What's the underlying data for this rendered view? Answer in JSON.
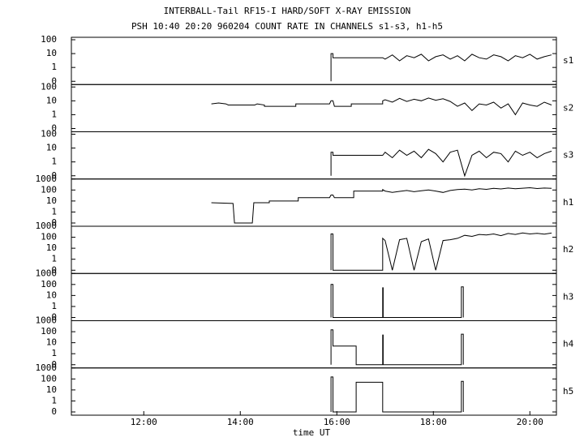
{
  "chart_data": [
    {
      "type": "line",
      "title": "INTERBALL-Tail RF15-I HARD/SOFT X-RAY EMISSION",
      "subtitle": "PSH 10:40 20:20 960204  COUNT RATE IN CHANNELS s1-s3, h1-h5",
      "name": "s1",
      "color": "#000000",
      "yscale": "log-zero",
      "xlim": [
        10.5,
        20.55
      ],
      "ylim": [
        0,
        150
      ],
      "yticks": [
        0,
        1,
        10,
        100
      ],
      "x": [
        15.88,
        15.88,
        15.92,
        15.92,
        16.95,
        16.95,
        17.0,
        17.15,
        17.3,
        17.45,
        17.6,
        17.75,
        17.9,
        18.05,
        18.2,
        18.35,
        18.5,
        18.65,
        18.8,
        18.95,
        19.1,
        19.25,
        19.4,
        19.55,
        19.7,
        19.85,
        20.0,
        20.15,
        20.3,
        20.45
      ],
      "values": [
        0,
        10,
        10,
        5,
        5,
        5,
        4,
        8,
        3,
        7,
        5,
        9,
        3,
        6,
        8,
        4,
        7,
        3,
        9,
        5,
        4,
        8,
        6,
        3,
        7,
        5,
        9,
        4,
        6,
        8
      ]
    },
    {
      "type": "line",
      "name": "s2",
      "color": "#000000",
      "yscale": "log-zero",
      "xlim": [
        10.5,
        20.55
      ],
      "ylim": [
        0,
        150
      ],
      "yticks": [
        0,
        1,
        10,
        100
      ],
      "x": [
        13.4,
        13.55,
        13.7,
        13.75,
        14.3,
        14.35,
        14.5,
        14.5,
        15.15,
        15.15,
        15.85,
        15.88,
        15.92,
        15.95,
        16.3,
        16.3,
        16.95,
        16.95,
        17.0,
        17.15,
        17.3,
        17.45,
        17.6,
        17.75,
        17.9,
        18.05,
        18.2,
        18.35,
        18.5,
        18.65,
        18.8,
        18.95,
        19.1,
        19.25,
        19.4,
        19.55,
        19.7,
        19.85,
        20.0,
        20.15,
        20.3,
        20.45
      ],
      "values": [
        6,
        7,
        6,
        5,
        5,
        6,
        5,
        4,
        4,
        6,
        6,
        10,
        10,
        4,
        4,
        6,
        6,
        10,
        12,
        8,
        15,
        9,
        13,
        10,
        16,
        11,
        14,
        9,
        4,
        7,
        2,
        6,
        5,
        8,
        3,
        6,
        1,
        7,
        5,
        4,
        8,
        5
      ]
    },
    {
      "type": "line",
      "name": "s3",
      "color": "#000000",
      "yscale": "log-zero",
      "xlim": [
        10.5,
        20.55
      ],
      "ylim": [
        0,
        150
      ],
      "yticks": [
        0,
        1,
        10,
        100
      ],
      "x": [
        15.88,
        15.88,
        15.92,
        15.92,
        16.95,
        16.95,
        17.0,
        17.15,
        17.3,
        17.45,
        17.6,
        17.75,
        17.9,
        18.05,
        18.2,
        18.35,
        18.5,
        18.65,
        18.8,
        18.95,
        19.1,
        19.25,
        19.4,
        19.55,
        19.7,
        19.85,
        20.0,
        20.15,
        20.3,
        20.45
      ],
      "values": [
        0,
        5,
        5,
        3,
        3,
        3,
        5,
        2,
        7,
        3,
        6,
        2,
        8,
        4,
        1,
        5,
        7,
        0,
        3,
        6,
        2,
        5,
        4,
        1,
        6,
        3,
        5,
        2,
        4,
        6
      ]
    },
    {
      "type": "line",
      "name": "h1",
      "color": "#000000",
      "yscale": "log-zero",
      "xlim": [
        10.5,
        20.55
      ],
      "ylim": [
        0,
        1000
      ],
      "yticks": [
        0,
        1,
        10,
        100,
        1000
      ],
      "x": [
        13.4,
        13.85,
        13.88,
        14.25,
        14.28,
        14.6,
        14.6,
        15.2,
        15.2,
        15.85,
        15.88,
        15.92,
        15.95,
        16.35,
        16.35,
        16.95,
        16.95,
        17.0,
        17.15,
        17.3,
        17.45,
        17.6,
        17.75,
        17.9,
        18.05,
        18.2,
        18.35,
        18.5,
        18.65,
        18.8,
        18.95,
        19.1,
        19.25,
        19.4,
        19.55,
        19.7,
        19.85,
        20.0,
        20.15,
        20.3,
        20.45
      ],
      "values": [
        7,
        6,
        0,
        0,
        7,
        7,
        10,
        10,
        20,
        20,
        35,
        35,
        20,
        20,
        80,
        80,
        110,
        80,
        60,
        75,
        90,
        70,
        85,
        100,
        80,
        60,
        90,
        110,
        120,
        100,
        130,
        115,
        140,
        125,
        150,
        130,
        145,
        160,
        135,
        150,
        140
      ]
    },
    {
      "type": "line",
      "name": "h2",
      "color": "#000000",
      "yscale": "log-zero",
      "xlim": [
        10.5,
        20.55
      ],
      "ylim": [
        0,
        1000
      ],
      "yticks": [
        0,
        1,
        10,
        100,
        1000
      ],
      "x": [
        15.88,
        15.88,
        15.92,
        15.92,
        16.95,
        16.95,
        17.0,
        17.15,
        17.3,
        17.45,
        17.6,
        17.75,
        17.9,
        18.05,
        18.2,
        18.35,
        18.5,
        18.65,
        18.8,
        18.95,
        19.1,
        19.25,
        19.4,
        19.55,
        19.7,
        19.85,
        20.0,
        20.15,
        20.3,
        20.45
      ],
      "values": [
        0,
        200,
        200,
        0,
        0,
        80,
        50,
        0,
        60,
        80,
        0,
        40,
        70,
        0,
        50,
        60,
        80,
        150,
        120,
        180,
        160,
        200,
        140,
        220,
        180,
        250,
        200,
        230,
        190,
        240
      ]
    },
    {
      "type": "line",
      "name": "h3",
      "color": "#000000",
      "yscale": "log-zero",
      "xlim": [
        10.5,
        20.55
      ],
      "ylim": [
        0,
        1000
      ],
      "yticks": [
        0,
        1,
        10,
        100,
        1000
      ],
      "x": [
        15.88,
        15.88,
        15.92,
        15.92,
        16.95,
        16.95,
        16.96,
        16.96,
        18.58,
        18.58,
        18.62,
        18.62
      ],
      "values": [
        0,
        100,
        100,
        0,
        0,
        50,
        50,
        0,
        0,
        60,
        60,
        0
      ]
    },
    {
      "type": "line",
      "name": "h4",
      "color": "#000000",
      "yscale": "log-zero",
      "xlim": [
        10.5,
        20.55
      ],
      "ylim": [
        0,
        1000
      ],
      "yticks": [
        0,
        1,
        10,
        100,
        1000
      ],
      "x": [
        15.88,
        15.88,
        15.92,
        15.92,
        16.4,
        16.4,
        16.95,
        16.95,
        16.96,
        16.96,
        18.58,
        18.58,
        18.62,
        18.62
      ],
      "values": [
        0,
        150,
        150,
        5,
        5,
        0,
        0,
        50,
        50,
        0,
        0,
        60,
        60,
        0
      ]
    },
    {
      "type": "line",
      "name": "h5",
      "color": "#000000",
      "yscale": "log-zero",
      "xlim": [
        10.5,
        20.55
      ],
      "ylim": [
        0,
        1000
      ],
      "yticks": [
        0,
        1,
        10,
        100,
        1000
      ],
      "x_label": "time UT",
      "xticks": [
        {
          "value": 12,
          "label": "12:00"
        },
        {
          "value": 14,
          "label": "14:00"
        },
        {
          "value": 16,
          "label": "16:00"
        },
        {
          "value": 18,
          "label": "18:00"
        },
        {
          "value": 20,
          "label": "20:00"
        }
      ],
      "x": [
        15.88,
        15.88,
        15.92,
        15.92,
        16.4,
        16.4,
        16.95,
        16.95,
        18.58,
        18.58,
        18.62,
        18.62
      ],
      "values": [
        0,
        150,
        150,
        0,
        0,
        50,
        50,
        0,
        0,
        60,
        60,
        0
      ]
    }
  ]
}
